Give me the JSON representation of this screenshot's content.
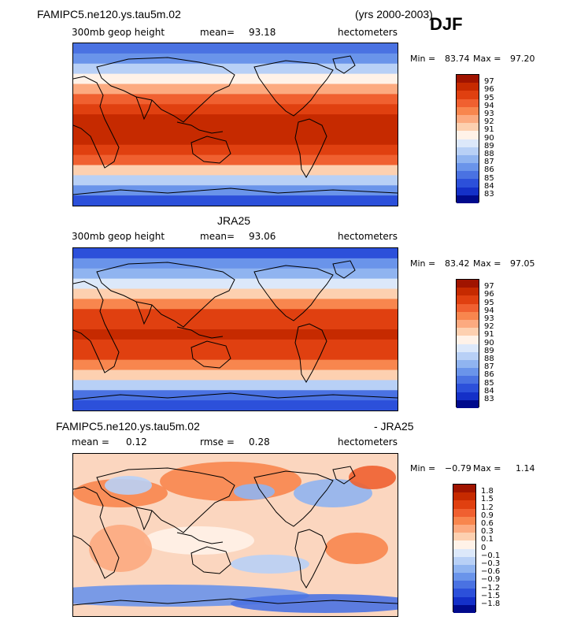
{
  "header": {
    "run_name": "FAMIPC5.ne120.ys.tau5m.02",
    "years": "(yrs 2000-2003)",
    "season": "DJF"
  },
  "panels": [
    {
      "title": "",
      "left": "300mb geop height",
      "mid_label": "mean=",
      "mid_value": "93.18",
      "units": "hectometers",
      "min_label": "Min =",
      "min_value": "83.74",
      "max_label": "Max =",
      "max_value": "97.20"
    },
    {
      "title": "JRA25",
      "left": "300mb geop height",
      "mid_label": "mean=",
      "mid_value": "93.06",
      "units": "hectometers",
      "min_label": "Min =",
      "min_value": "83.42",
      "max_label": "Max =",
      "max_value": "97.05"
    },
    {
      "title_left": "FAMIPC5.ne120.ys.tau5m.02",
      "title_right": "- JRA25",
      "left_label": "mean =",
      "left_value": "0.12",
      "mid_label": "rmse =",
      "mid_value": "0.28",
      "units": "hectometers",
      "min_label": "Min =",
      "min_value": "−0.79",
      "max_label": "Max =",
      "max_value": "1.14"
    }
  ],
  "colorbars": {
    "height": {
      "labels": [
        "97",
        "96",
        "95",
        "94",
        "93",
        "92",
        "91",
        "90",
        "89",
        "88",
        "87",
        "86",
        "85",
        "84",
        "83"
      ],
      "colors": [
        "#a01400",
        "#c62a00",
        "#e04010",
        "#f06030",
        "#f8864e",
        "#fcaa80",
        "#fdd0b0",
        "#fff2e8",
        "#dce8fa",
        "#b8d0f6",
        "#90b4f0",
        "#6a94ea",
        "#4a72e2",
        "#2c50da",
        "#1430c8",
        "#000a8c"
      ]
    },
    "diff": {
      "labels": [
        "1.8",
        "1.5",
        "1.2",
        "0.9",
        "0.6",
        "0.3",
        "0.1",
        "0",
        "−0.1",
        "−0.3",
        "−0.6",
        "−0.9",
        "−1.2",
        "−1.5",
        "−1.8"
      ],
      "colors": [
        "#a01400",
        "#c62a00",
        "#e04010",
        "#f06030",
        "#f8864e",
        "#fcaa80",
        "#fdd0b0",
        "#fff2e8",
        "#dce8fa",
        "#b8d0f6",
        "#90b4f0",
        "#6a94ea",
        "#4a72e2",
        "#2c50da",
        "#1430c8",
        "#000a8c"
      ]
    }
  },
  "chart_data": [
    {
      "type": "heatmap",
      "title": "FAMIPC5.ne120.ys.tau5m.02",
      "subtitle": "300mb geop height",
      "units": "hectometers",
      "mean": 93.18,
      "min": 83.74,
      "max": 97.2,
      "levels": [
        83,
        84,
        85,
        86,
        87,
        88,
        89,
        90,
        91,
        92,
        93,
        94,
        95,
        96,
        97
      ],
      "zonal_profile_south_to_north": [
        84.5,
        86,
        88.5,
        91.5,
        94,
        95.5,
        96,
        96.2,
        96,
        95.5,
        94,
        92,
        90,
        88,
        86.5,
        85
      ]
    },
    {
      "type": "heatmap",
      "title": "JRA25",
      "subtitle": "300mb geop height",
      "units": "hectometers",
      "mean": 93.06,
      "min": 83.42,
      "max": 97.05,
      "levels": [
        83,
        84,
        85,
        86,
        87,
        88,
        89,
        90,
        91,
        92,
        93,
        94,
        95,
        96,
        97
      ],
      "zonal_profile_south_to_north": [
        84.3,
        85.8,
        88.3,
        91.3,
        93.8,
        95.3,
        95.9,
        96.1,
        95.9,
        95.4,
        93.9,
        91.9,
        89.9,
        87.9,
        86.4,
        84.9
      ]
    },
    {
      "type": "heatmap",
      "title": "FAMIPC5.ne120.ys.tau5m.02 - JRA25",
      "units": "hectometers",
      "mean": 0.12,
      "rmse": 0.28,
      "min": -0.79,
      "max": 1.14,
      "levels": [
        -1.8,
        -1.5,
        -1.2,
        -0.9,
        -0.6,
        -0.3,
        -0.1,
        0,
        0.1,
        0.3,
        0.6,
        0.9,
        1.2,
        1.5,
        1.8
      ]
    }
  ]
}
